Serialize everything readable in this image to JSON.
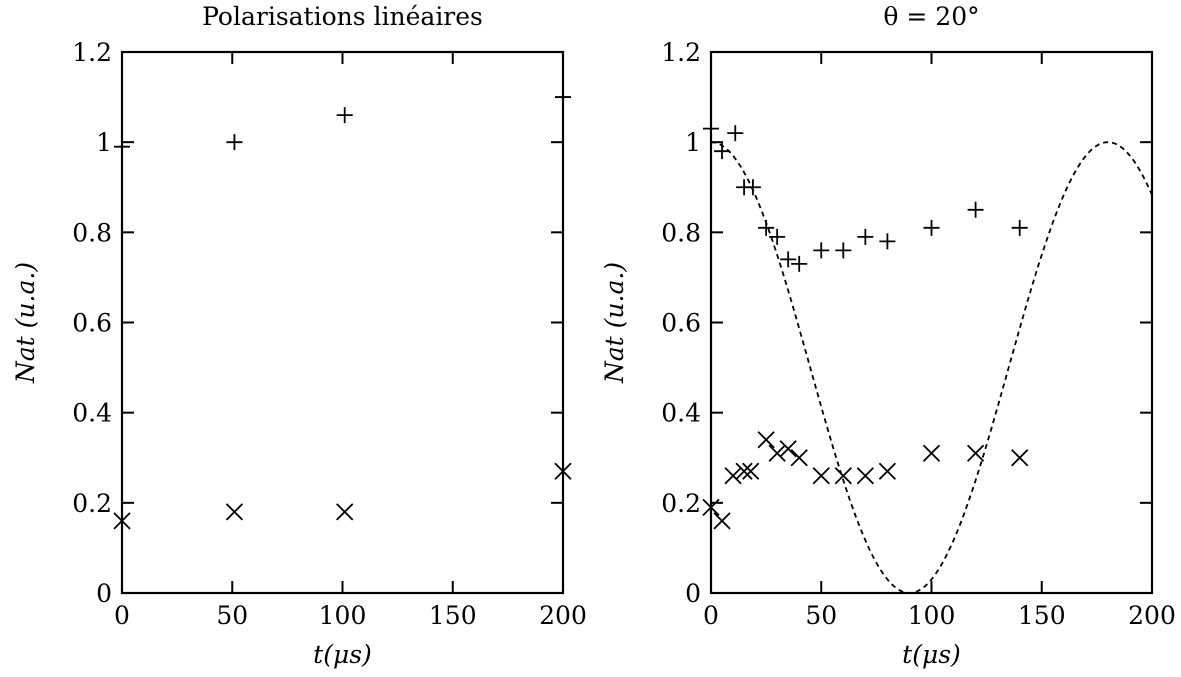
{
  "chart_data": [
    {
      "type": "scatter",
      "title": "Polarisations linéaires",
      "xlabel": "t(μs)",
      "ylabel": "Nat (u.a.)",
      "xlim": [
        0,
        200
      ],
      "ylim": [
        0,
        1.2
      ],
      "xticks": [
        "0",
        "50",
        "100",
        "150",
        "200"
      ],
      "yticks": [
        "0",
        "0.2",
        "0.4",
        "0.6",
        "0.8",
        "1",
        "1.2"
      ],
      "series": [
        {
          "marker": "plus",
          "x": [
            0,
            51,
            101,
            200
          ],
          "y": [
            0.99,
            1.0,
            1.06,
            1.1
          ]
        },
        {
          "marker": "cross",
          "x": [
            0,
            51,
            101,
            200
          ],
          "y": [
            0.16,
            0.18,
            0.18,
            0.27
          ]
        }
      ]
    },
    {
      "type": "scatter",
      "title": "θ = 20°",
      "xlabel": "t(μs)",
      "ylabel": "Nat (u.a.)",
      "xlim": [
        0,
        200
      ],
      "ylim": [
        0,
        1.2
      ],
      "xticks": [
        "0",
        "50",
        "100",
        "150",
        "200"
      ],
      "yticks": [
        "0",
        "0.2",
        "0.4",
        "0.6",
        "0.8",
        "1",
        "1.2"
      ],
      "series": [
        {
          "marker": "plus",
          "x": [
            0,
            5,
            11,
            15,
            19,
            25,
            30,
            35,
            40,
            50,
            60,
            70,
            80,
            100,
            120,
            140
          ],
          "y": [
            1.03,
            0.98,
            1.02,
            0.9,
            0.9,
            0.81,
            0.79,
            0.74,
            0.73,
            0.76,
            0.76,
            0.79,
            0.78,
            0.81,
            0.85,
            0.81
          ]
        },
        {
          "marker": "cross",
          "x": [
            0,
            5,
            10,
            15,
            18,
            25,
            30,
            35,
            40,
            50,
            60,
            70,
            80,
            100,
            120,
            140
          ],
          "y": [
            0.19,
            0.16,
            0.26,
            0.27,
            0.27,
            0.34,
            0.31,
            0.32,
            0.3,
            0.26,
            0.26,
            0.26,
            0.27,
            0.31,
            0.31,
            0.3
          ]
        },
        {
          "marker": "dashed-line",
          "function": "cos2",
          "amplitude": 1.0,
          "period": 180,
          "xrange": [
            0,
            200
          ]
        }
      ]
    }
  ]
}
